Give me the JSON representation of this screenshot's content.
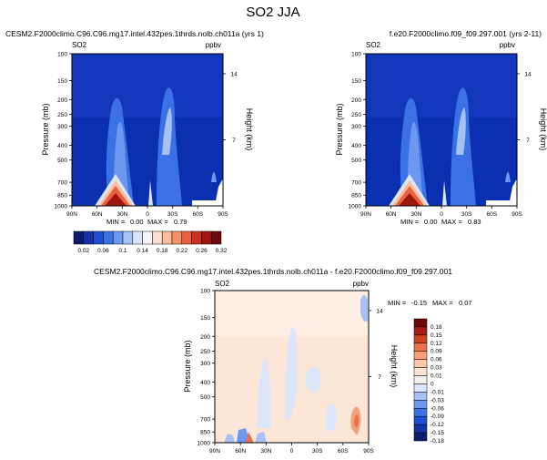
{
  "title": "SO2 JJA",
  "colors": {
    "top_scale": [
      "#0a1d6e",
      "#1632a8",
      "#1f4fd4",
      "#3a72e6",
      "#6c98f0",
      "#a6c2f5",
      "#dbe6fb",
      "#f7f7f7",
      "#fde0cf",
      "#fbbd9e",
      "#f5906a",
      "#e8623f",
      "#c9331d",
      "#a01412",
      "#6e0707"
    ],
    "diff_scale": [
      "#0a1d6e",
      "#1632a8",
      "#1f4fd4",
      "#3a72e6",
      "#6c98f0",
      "#a6c2f5",
      "#dbe6fb",
      "#f4f2ef",
      "#fbe3d4",
      "#fbc8ab",
      "#f5a07a",
      "#e8704a",
      "#cf4228",
      "#a81a14",
      "#6e0707"
    ]
  },
  "chart_data": [
    {
      "type": "heatmap",
      "title": "CESM2.F2000climo.C96.C96.mg17.intel.432pes.1thrds.nolb.ch011a (yrs 1)",
      "variable": "SO2",
      "units": "ppbv",
      "ylabel": "Pressure (mb)",
      "y2label": "Height (km)",
      "x_ticks": [
        "90N",
        "60N",
        "30N",
        "0",
        "30S",
        "60S",
        "90S"
      ],
      "y_ticks": [
        100,
        150,
        200,
        250,
        300,
        400,
        500,
        700,
        850,
        1000
      ],
      "y2_ticks": [
        14,
        7
      ],
      "ylim": [
        1000,
        100
      ],
      "log_pressure": true,
      "stats": {
        "min_label": "MIN =",
        "min": "0.00",
        "max_label": "MAX =",
        "max": "0.79"
      },
      "colorbar_levels": [
        "0.02",
        "0.06",
        "0.1",
        "0.14",
        "0.18",
        "0.22",
        "0.26",
        "0.32"
      ]
    },
    {
      "type": "heatmap",
      "title": "f.e20.F2000climo.f09_f09.297.001 (yrs 2-11)",
      "variable": "SO2",
      "units": "ppbv",
      "ylabel": "Pressure (mb)",
      "y2label": "Height (km)",
      "x_ticks": [
        "90N",
        "60N",
        "30N",
        "0",
        "30S",
        "60S",
        "90S"
      ],
      "y_ticks": [
        100,
        150,
        200,
        250,
        300,
        400,
        500,
        700,
        850,
        1000
      ],
      "y2_ticks": [
        14,
        7
      ],
      "ylim": [
        1000,
        100
      ],
      "log_pressure": true,
      "stats": {
        "min_label": "MIN =",
        "min": "0.00",
        "max_label": "MAX =",
        "max": "0.83"
      }
    },
    {
      "type": "heatmap",
      "title": "CESM2.F2000climo.C96.C96.mg17.intel.432pes.1thrds.nolb.ch011a - f.e20.F2000climo.f09_f09.297.001",
      "variable": "SO2",
      "units": "ppbv",
      "ylabel": "Pressure (mb)",
      "y2label": "Height (km)",
      "x_ticks": [
        "90N",
        "60N",
        "30N",
        "0",
        "30S",
        "60S",
        "90S"
      ],
      "y_ticks": [
        100,
        150,
        200,
        250,
        300,
        400,
        500,
        700,
        850,
        1000
      ],
      "y2_ticks": [
        14,
        7
      ],
      "ylim": [
        1000,
        100
      ],
      "log_pressure": true,
      "stats": {
        "min_label": "MIN =",
        "min": "-0.15",
        "max_label": "MAX =",
        "max": "0.07"
      },
      "colorbar_levels": [
        "0.18",
        "0.15",
        "0.12",
        "0.09",
        "0.06",
        "0.03",
        "0.01",
        "0",
        "-0.01",
        "-0.03",
        "-0.06",
        "-0.09",
        "-0.12",
        "-0.15",
        "-0.18"
      ]
    }
  ]
}
